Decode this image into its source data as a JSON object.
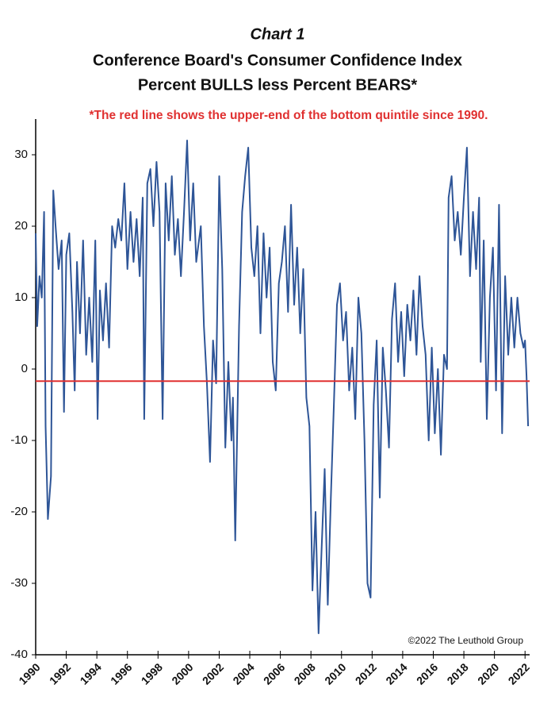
{
  "chart_data": {
    "type": "line",
    "title": "Chart 1",
    "subtitle": [
      "Conference Board's Consumer Confidence Index",
      "Percent BULLS less Percent BEARS*"
    ],
    "annotation": "*The red line shows the upper-end of the bottom quintile since 1990.",
    "source": "©2022 The Leuthold Group",
    "threshold": {
      "value": -1.7,
      "color": "#e03030"
    },
    "x": [
      1990.0,
      1990.1,
      1990.25,
      1990.4,
      1990.55,
      1990.65,
      1990.8,
      1991.0,
      1991.15,
      1991.3,
      1991.5,
      1991.7,
      1991.85,
      1992.0,
      1992.2,
      1992.4,
      1992.55,
      1992.7,
      1992.9,
      1993.1,
      1993.3,
      1993.5,
      1993.7,
      1993.9,
      1994.05,
      1994.2,
      1994.4,
      1994.6,
      1994.8,
      1995.0,
      1995.2,
      1995.4,
      1995.6,
      1995.8,
      1996.0,
      1996.2,
      1996.4,
      1996.6,
      1996.8,
      1997.0,
      1997.1,
      1997.3,
      1997.5,
      1997.7,
      1997.9,
      1998.1,
      1998.3,
      1998.5,
      1998.7,
      1998.9,
      1999.1,
      1999.3,
      1999.5,
      1999.7,
      1999.9,
      2000.1,
      2000.3,
      2000.5,
      2000.8,
      2001.0,
      2001.2,
      2001.4,
      2001.6,
      2001.8,
      2002.0,
      2002.2,
      2002.4,
      2002.6,
      2002.8,
      2002.9,
      2003.05,
      2003.3,
      2003.5,
      2003.7,
      2003.9,
      2004.1,
      2004.3,
      2004.5,
      2004.7,
      2004.9,
      2005.1,
      2005.3,
      2005.5,
      2005.7,
      2005.9,
      2006.1,
      2006.3,
      2006.5,
      2006.7,
      2006.9,
      2007.1,
      2007.3,
      2007.5,
      2007.7,
      2007.9,
      2008.1,
      2008.3,
      2008.5,
      2008.7,
      2008.9,
      2009.1,
      2009.3,
      2009.5,
      2009.7,
      2009.9,
      2010.1,
      2010.3,
      2010.5,
      2010.7,
      2010.9,
      2011.1,
      2011.3,
      2011.5,
      2011.7,
      2011.9,
      2012.1,
      2012.3,
      2012.5,
      2012.7,
      2012.9,
      2013.1,
      2013.3,
      2013.5,
      2013.7,
      2013.9,
      2014.1,
      2014.3,
      2014.5,
      2014.7,
      2014.9,
      2015.1,
      2015.3,
      2015.5,
      2015.7,
      2015.9,
      2016.1,
      2016.3,
      2016.5,
      2016.7,
      2016.9,
      2017.0,
      2017.2,
      2017.4,
      2017.6,
      2017.8,
      2018.0,
      2018.2,
      2018.4,
      2018.6,
      2018.8,
      2019.0,
      2019.1,
      2019.3,
      2019.5,
      2019.7,
      2019.9,
      2020.1,
      2020.3,
      2020.5,
      2020.7,
      2020.9,
      2021.1,
      2021.3,
      2021.5,
      2021.7,
      2021.9,
      2022.0,
      2022.1,
      2022.2
    ],
    "series": [
      {
        "name": "Bulls less Bears",
        "color": "#2e5597",
        "values": [
          19,
          6,
          13,
          10,
          22,
          -8,
          -21,
          -15,
          25,
          20,
          14,
          18,
          -6,
          16,
          19,
          8,
          -3,
          15,
          5,
          18,
          2,
          10,
          1,
          18,
          -7,
          11,
          4,
          12,
          3,
          20,
          17,
          21,
          18,
          26,
          14,
          22,
          15,
          21,
          13,
          24,
          -7,
          26,
          28,
          20,
          29,
          22,
          -7,
          26,
          18,
          27,
          16,
          21,
          13,
          22,
          32,
          18,
          26,
          15,
          20,
          6,
          -2,
          -13,
          4,
          -2,
          27,
          14,
          -11,
          1,
          -10,
          -4,
          -24,
          6,
          22,
          27,
          31,
          17,
          13,
          20,
          5,
          19,
          10,
          17,
          1,
          -3,
          12,
          15,
          20,
          8,
          23,
          9,
          17,
          5,
          14,
          -4,
          -8,
          -31,
          -20,
          -37,
          -25,
          -14,
          -33,
          -18,
          -5,
          9,
          12,
          4,
          8,
          -3,
          3,
          -7,
          10,
          5,
          -10,
          -30,
          -32,
          -5,
          4,
          -18,
          3,
          -3,
          -11,
          7,
          12,
          1,
          8,
          -1,
          9,
          4,
          11,
          2,
          13,
          6,
          2,
          -10,
          3,
          -9,
          0,
          -12,
          2,
          0,
          24,
          27,
          18,
          22,
          16,
          24,
          31,
          13,
          22,
          14,
          24,
          1,
          18,
          -7,
          10,
          17,
          -3,
          23,
          -9,
          13,
          2,
          10,
          3,
          10,
          5,
          3,
          4,
          -1,
          -8
        ]
      }
    ],
    "xlim": [
      1990,
      2022.3
    ],
    "xticks": [
      1990,
      1992,
      1994,
      1996,
      1998,
      2000,
      2002,
      2004,
      2006,
      2008,
      2010,
      2012,
      2014,
      2016,
      2018,
      2020,
      2022
    ],
    "ylim": [
      -40,
      35
    ],
    "yticks": [
      -40,
      -30,
      -20,
      -10,
      0,
      10,
      20,
      30
    ]
  }
}
